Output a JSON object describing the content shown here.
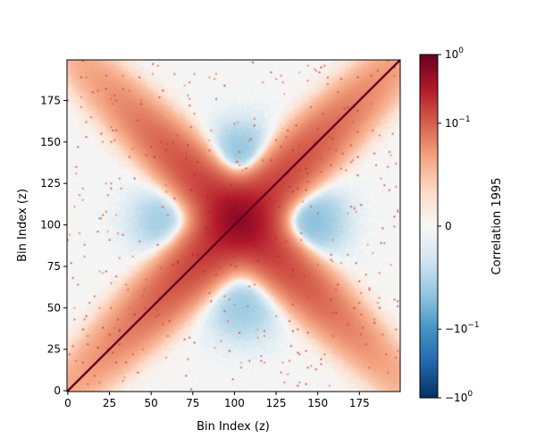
{
  "chart_data": {
    "type": "heatmap",
    "title": "",
    "xlabel": "Bin Index (z)",
    "ylabel": "Bin Index (z)",
    "x_range": [
      0,
      199
    ],
    "y_range": [
      0,
      199
    ],
    "x_ticks": [
      0,
      25,
      50,
      75,
      100,
      125,
      150,
      175
    ],
    "y_ticks": [
      0,
      25,
      50,
      75,
      100,
      125,
      150,
      175
    ],
    "colorbar": {
      "label": "Correlation 1995",
      "scale": "symlog",
      "range": [
        -1,
        1
      ],
      "colormap": "RdBu_r",
      "ticks": [
        {
          "value": 1,
          "label": "10^0"
        },
        {
          "value": 0.1,
          "label": "10^-1"
        },
        {
          "value": 0,
          "label": "0"
        },
        {
          "value": -0.1,
          "label": "-10^-1"
        },
        {
          "value": -1,
          "label": "-10^0"
        }
      ]
    },
    "structure": {
      "diagonal_value": 1.0,
      "cross_center_bin": 103,
      "cross_peak_value": 0.3,
      "positive_band_directions": [
        "diagonal",
        "anti-diagonal"
      ],
      "negative_lobes": [
        {
          "x": 105,
          "y": 137,
          "value": -0.04
        },
        {
          "x": 105,
          "y": 52,
          "value": -0.025
        },
        {
          "x": 142,
          "y": 102,
          "value": -0.04
        },
        {
          "x": 60,
          "y": 102,
          "value": -0.025
        }
      ]
    },
    "grid": false,
    "legend": "colorbar-right"
  }
}
